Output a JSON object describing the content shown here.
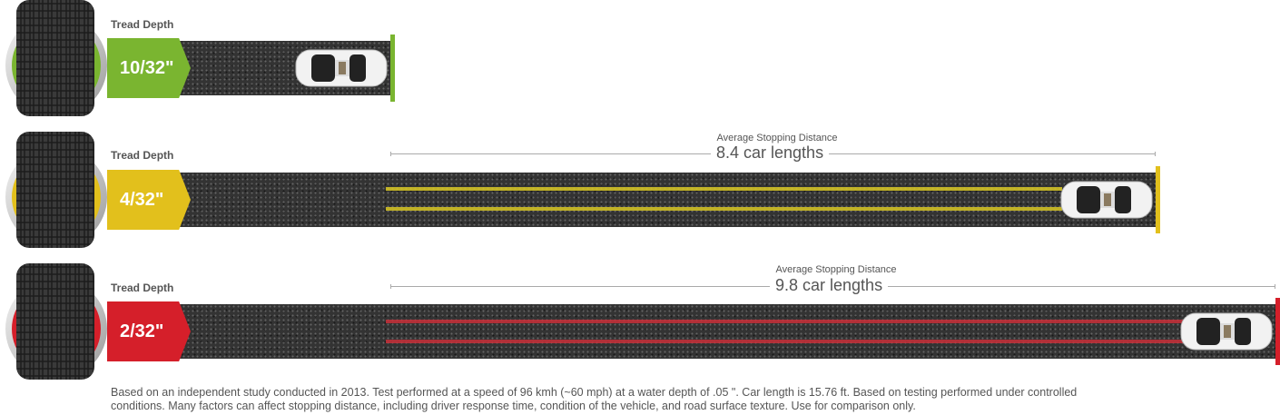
{
  "colors": {
    "good": "#7ab530",
    "worn": "#e2c01c",
    "bad": "#d51f2a"
  },
  "rows": [
    {
      "label": "Tread Depth",
      "depth": "10/32\"",
      "stopping_title": "",
      "stopping_value": ""
    },
    {
      "label": "Tread Depth",
      "depth": "4/32\"",
      "stopping_title": "Average Stopping Distance",
      "stopping_value": "8.4 car lengths"
    },
    {
      "label": "Tread Depth",
      "depth": "2/32\"",
      "stopping_title": "Average Stopping Distance",
      "stopping_value": "9.8 car lengths"
    }
  ],
  "footnote": {
    "line1": "Based on an independent study conducted in 2013. Test performed at a speed of 96 kmh (~60 mph) at a water depth of .05 \". Car length is 15.76 ft. Based on testing performed under controlled",
    "line2": "conditions. Many factors can affect stopping distance, including driver response time, condition of the vehicle, and road surface texture. Use for comparison only."
  }
}
